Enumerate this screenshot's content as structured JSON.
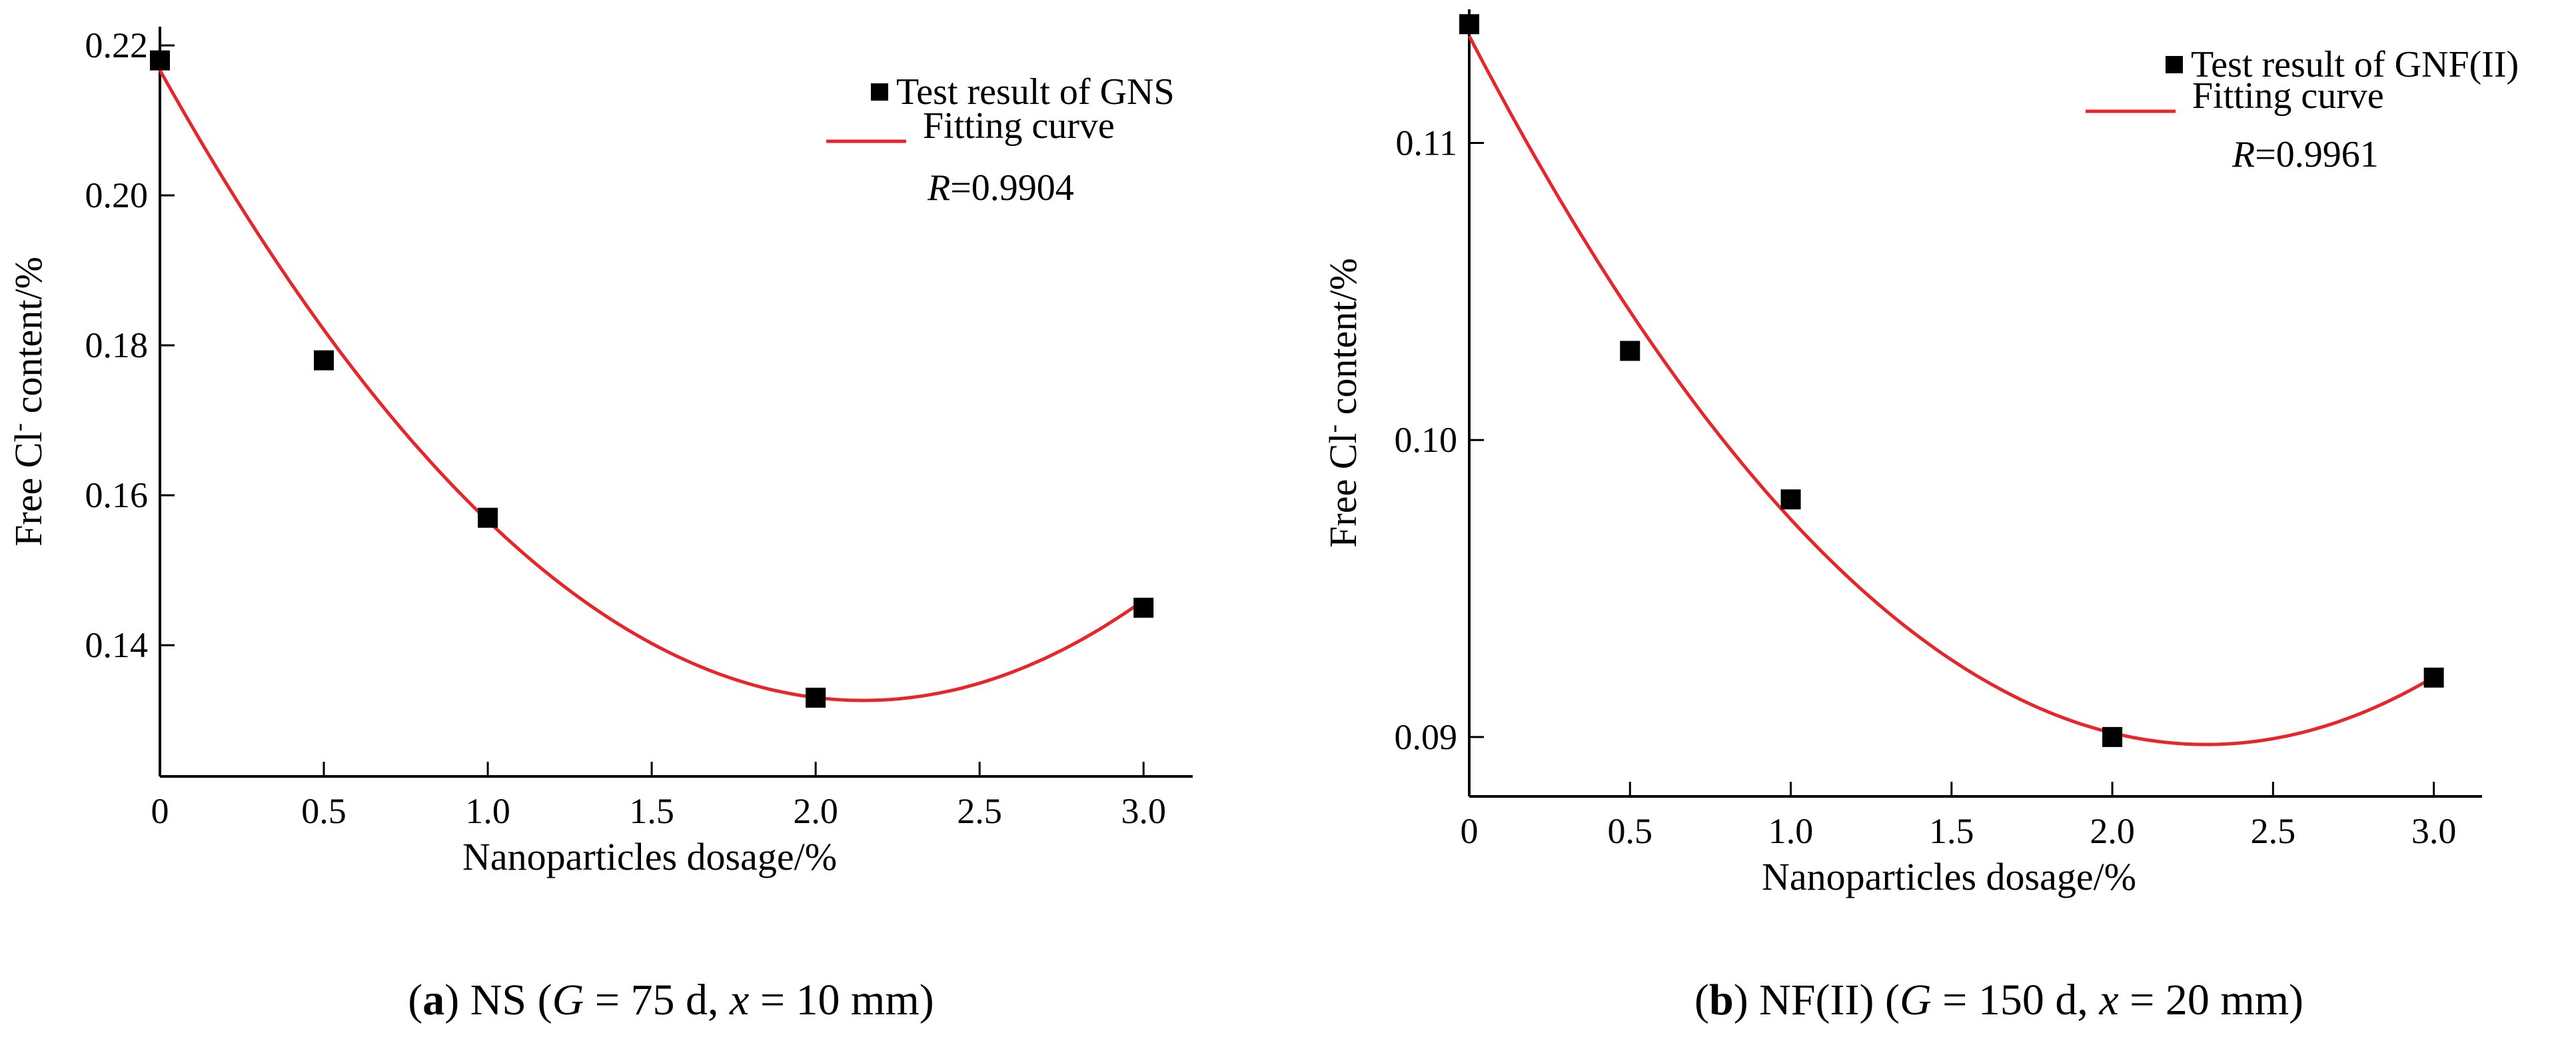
{
  "chart_data": [
    {
      "type": "scatter",
      "panel_label": "a",
      "caption": {
        "label": "a",
        "open": "(",
        "close": ")",
        "text_a": " NS (",
        "g_symbol": "G",
        "g_value": " = 75 d, ",
        "x_symbol": "x",
        "x_value": " = 10 mm)"
      },
      "xlabel": "Nanoparticles dosage/%",
      "ylabel_pre": "Free Cl",
      "ylabel_sup": "-",
      "ylabel_post": " content/%",
      "xlim": [
        0,
        3.15
      ],
      "ylim": [
        0.1225,
        0.2225
      ],
      "xticks": [
        0,
        0.5,
        1.0,
        1.5,
        2.0,
        2.5,
        3.0
      ],
      "xtick_labels": [
        "0",
        "0.5",
        "1.0",
        "1.5",
        "2.0",
        "2.5",
        "3.0"
      ],
      "yticks": [
        0.14,
        0.16,
        0.18,
        0.2,
        0.22
      ],
      "ytick_labels": [
        "0.14",
        "0.16",
        "0.18",
        "0.20",
        "0.22"
      ],
      "series": [
        {
          "name": "Test result of GNS",
          "kind": "scatter",
          "x": [
            0,
            0.5,
            1.0,
            2.0,
            3.0
          ],
          "y": [
            0.218,
            0.178,
            0.157,
            0.133,
            0.145
          ]
        },
        {
          "name": "Fitting curve",
          "kind": "line",
          "color": "#e8262a",
          "model": "quadratic",
          "coefficients": {
            "a": 0.01827,
            "b": -0.07838,
            "c": 0.2167
          },
          "x_range": [
            0,
            3.0
          ]
        }
      ],
      "r_symbol": "R",
      "r_value": "=0.9904"
    },
    {
      "type": "scatter",
      "panel_label": "b",
      "caption": {
        "label": "b",
        "open": "(",
        "close": ")",
        "text_a": " NF(II) (",
        "g_symbol": "G",
        "g_value": " = 150 d, ",
        "x_symbol": "x",
        "x_value": " = 20 mm)"
      },
      "xlabel": "Nanoparticles dosage/%",
      "ylabel_pre": "Free Cl",
      "ylabel_sup": "-",
      "ylabel_post": " content/%",
      "xlim": [
        0,
        3.15
      ],
      "ylim": [
        0.088,
        0.1145
      ],
      "xticks": [
        0,
        0.5,
        1.0,
        1.5,
        2.0,
        2.5,
        3.0
      ],
      "xtick_labels": [
        "0",
        "0.5",
        "1.0",
        "1.5",
        "2.0",
        "2.5",
        "3.0"
      ],
      "yticks": [
        0.09,
        0.1,
        0.11
      ],
      "ytick_labels": [
        "0.09",
        "0.10",
        "0.11"
      ],
      "series": [
        {
          "name": "Test result of GNF(II)",
          "kind": "scatter",
          "x": [
            0,
            0.5,
            1.0,
            2.0,
            3.0
          ],
          "y": [
            0.114,
            0.103,
            0.098,
            0.09,
            0.092
          ]
        },
        {
          "name": "Fitting curve",
          "kind": "line",
          "color": "#e8262a",
          "model": "quadratic",
          "coefficients": {
            "a": 0.004539,
            "b": -0.02081,
            "c": 0.1136
          },
          "x_range": [
            0,
            3.0
          ]
        }
      ],
      "r_symbol": "R",
      "r_value": "=0.9961"
    }
  ]
}
